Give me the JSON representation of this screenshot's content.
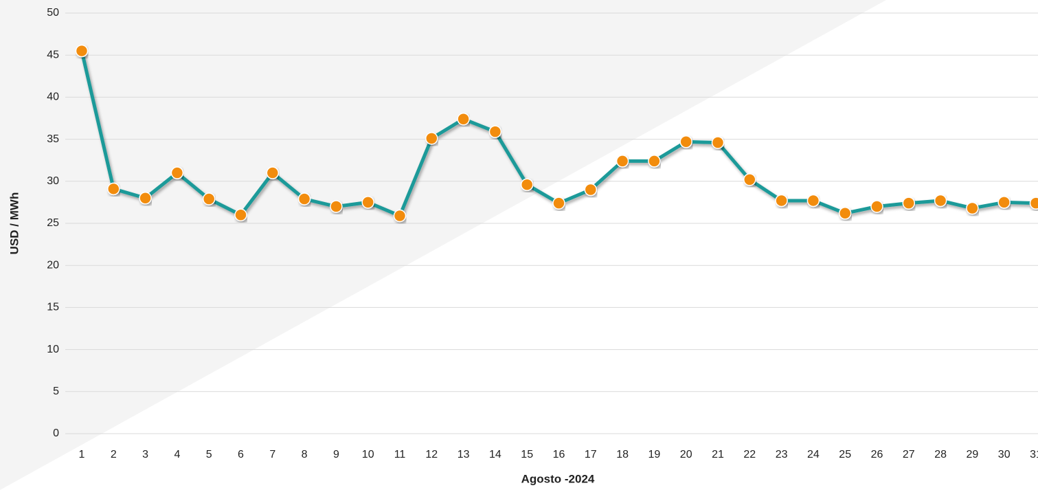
{
  "chart_data": {
    "type": "line",
    "x_label": "Agosto -2024",
    "y_label": "USD / MWh",
    "categories": [
      "1",
      "2",
      "3",
      "4",
      "5",
      "6",
      "7",
      "8",
      "9",
      "10",
      "11",
      "12",
      "13",
      "14",
      "15",
      "16",
      "17",
      "18",
      "19",
      "20",
      "21",
      "22",
      "23",
      "24",
      "25",
      "26",
      "27",
      "28",
      "29",
      "30",
      "31"
    ],
    "series": [
      {
        "name": "USD / MWh",
        "color": "#1a9a99",
        "marker_color": "#f28c0f",
        "values": [
          45.5,
          29.1,
          28.0,
          31.0,
          27.9,
          26.0,
          31.0,
          27.9,
          27.0,
          27.5,
          25.9,
          35.1,
          37.4,
          35.9,
          29.6,
          27.4,
          29.0,
          32.4,
          32.4,
          34.7,
          34.6,
          30.2,
          27.7,
          27.7,
          26.2,
          27.0,
          27.4,
          27.7,
          26.8,
          27.5,
          27.4
        ]
      }
    ],
    "ylim": [
      0,
      50
    ],
    "yticks": [
      0,
      5,
      10,
      15,
      20,
      25,
      30,
      35,
      40,
      45,
      50
    ],
    "grid": true
  }
}
